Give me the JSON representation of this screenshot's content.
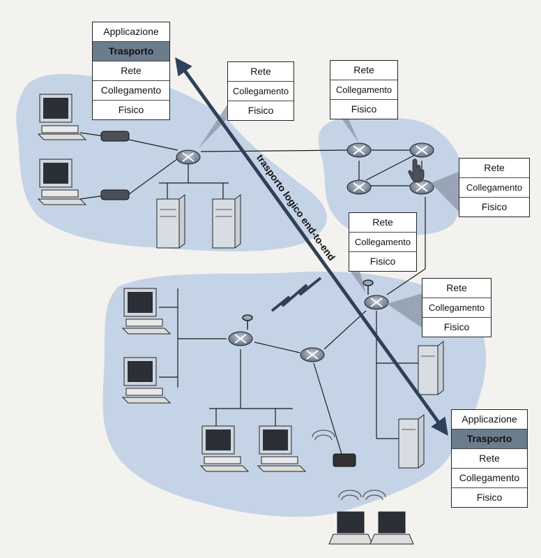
{
  "diagram": {
    "host_source_stack": [
      "Applicazione",
      "Trasporto",
      "Rete",
      "Collegamento",
      "Fisico"
    ],
    "host_dest_stack": [
      "Applicazione",
      "Trasporto",
      "Rete",
      "Collegamento",
      "Fisico"
    ],
    "router_stack_1": [
      "Rete",
      "Collegamento",
      "Fisico"
    ],
    "router_stack_2": [
      "Rete",
      "Collegamento",
      "Fisico"
    ],
    "router_stack_3": [
      "Rete",
      "Collegamento",
      "Fisico"
    ],
    "router_stack_4": [
      "Rete",
      "Collegamento",
      "Fisico"
    ],
    "router_stack_5": [
      "Rete",
      "Collegamento",
      "Fisico"
    ],
    "highlighted_layer": "Trasporto",
    "arrow_label": "trasporto logico end-to-end",
    "colors": {
      "network_cloud": "#c5d3e6",
      "highlight": "#6b7c8c",
      "arrow": "#2f4058",
      "router": "#8796a8"
    }
  }
}
